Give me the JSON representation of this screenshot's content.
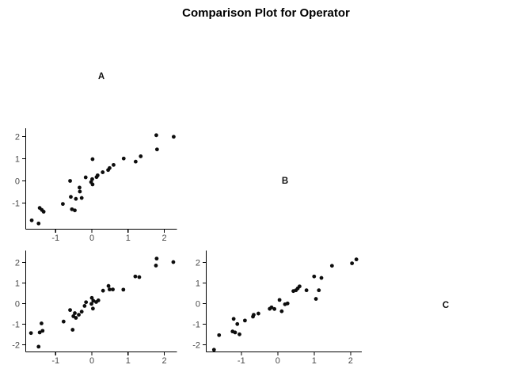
{
  "chart_data": {
    "type": "scatter",
    "title": "Comparison Plot for Operator",
    "variables": [
      "A",
      "B",
      "C"
    ],
    "grid": false,
    "legend": false,
    "point_color": "#0d0d0d",
    "axis_color": "#000000",
    "tick_label_color": "#4a4a4a",
    "background_color": "#ffffff",
    "description": "Lower-triangle pairwise scatter matrix of measurements by operators A, B and C; diagonal cells show the operator label.",
    "panels": [
      {
        "x_var": "A",
        "y_var": "B",
        "x_ticks": [
          -1,
          0,
          1,
          2
        ],
        "y_ticks": [
          2,
          1,
          0,
          -1
        ],
        "x_range": [
          -1.85,
          2.35
        ],
        "y_range": [
          -2.2,
          2.35
        ],
        "points": [
          [
            -1.66,
            -1.78
          ],
          [
            -1.47,
            -1.92
          ],
          [
            -1.44,
            -1.22
          ],
          [
            -1.38,
            -1.31
          ],
          [
            -1.33,
            -1.39
          ],
          [
            -0.8,
            -1.04
          ],
          [
            -0.6,
            0.0
          ],
          [
            -0.58,
            -0.72
          ],
          [
            -0.55,
            -1.28
          ],
          [
            -0.47,
            -1.33
          ],
          [
            -0.44,
            -0.81
          ],
          [
            -0.34,
            -0.3
          ],
          [
            -0.33,
            -0.48
          ],
          [
            -0.28,
            -0.77
          ],
          [
            -0.17,
            0.16
          ],
          [
            0.02,
            0.98
          ],
          [
            0.01,
            0.08
          ],
          [
            -0.02,
            -0.05
          ],
          [
            0.02,
            -0.16
          ],
          [
            0.13,
            0.17
          ],
          [
            0.16,
            0.25
          ],
          [
            0.3,
            0.39
          ],
          [
            0.45,
            0.49
          ],
          [
            0.49,
            0.58
          ],
          [
            0.6,
            0.72
          ],
          [
            0.88,
            1.01
          ],
          [
            1.21,
            0.87
          ],
          [
            1.35,
            1.11
          ],
          [
            1.78,
            2.06
          ],
          [
            1.8,
            1.42
          ],
          [
            2.26,
            1.99
          ]
        ]
      },
      {
        "x_var": "A",
        "y_var": "C",
        "x_ticks": [
          -1,
          0,
          1,
          2
        ],
        "y_ticks": [
          2,
          1,
          0,
          -1,
          -2
        ],
        "x_range": [
          -1.85,
          2.35
        ],
        "y_range": [
          -2.45,
          2.45
        ],
        "points": [
          [
            -1.68,
            -1.44
          ],
          [
            -1.47,
            -2.1
          ],
          [
            -1.44,
            -1.41
          ],
          [
            -1.39,
            -0.97
          ],
          [
            -1.36,
            -1.33
          ],
          [
            -0.78,
            -0.88
          ],
          [
            -0.6,
            -0.32
          ],
          [
            -0.53,
            -1.28
          ],
          [
            -0.51,
            -0.62
          ],
          [
            -0.47,
            -0.47
          ],
          [
            -0.44,
            -0.7
          ],
          [
            -0.36,
            -0.55
          ],
          [
            -0.28,
            -0.4
          ],
          [
            -0.2,
            -0.12
          ],
          [
            -0.16,
            0.06
          ],
          [
            0.0,
            0.27
          ],
          [
            0.04,
            0.13
          ],
          [
            -0.01,
            -0.02
          ],
          [
            0.03,
            -0.25
          ],
          [
            0.12,
            0.07
          ],
          [
            0.18,
            0.15
          ],
          [
            0.31,
            0.62
          ],
          [
            0.46,
            0.85
          ],
          [
            0.49,
            0.68
          ],
          [
            0.58,
            0.68
          ],
          [
            0.87,
            0.67
          ],
          [
            1.2,
            1.31
          ],
          [
            1.31,
            1.28
          ],
          [
            1.77,
            1.84
          ],
          [
            1.79,
            2.18
          ],
          [
            2.25,
            2.01
          ]
        ]
      },
      {
        "x_var": "B",
        "y_var": "C",
        "x_ticks": [
          -1,
          0,
          1,
          2
        ],
        "y_ticks": [
          2,
          1,
          0,
          -1,
          -2
        ],
        "x_range": [
          -1.95,
          2.3
        ],
        "y_range": [
          -2.45,
          2.45
        ],
        "points": [
          [
            -1.75,
            -2.25
          ],
          [
            -1.61,
            -1.54
          ],
          [
            -1.24,
            -1.36
          ],
          [
            -1.21,
            -0.75
          ],
          [
            -1.17,
            -1.41
          ],
          [
            -1.11,
            -1.0
          ],
          [
            -1.05,
            -1.5
          ],
          [
            -0.9,
            -0.83
          ],
          [
            -0.68,
            -0.64
          ],
          [
            -0.66,
            -0.55
          ],
          [
            -0.53,
            -0.49
          ],
          [
            -0.22,
            -0.26
          ],
          [
            -0.17,
            -0.19
          ],
          [
            -0.09,
            -0.27
          ],
          [
            0.05,
            0.17
          ],
          [
            0.11,
            -0.38
          ],
          [
            0.2,
            -0.04
          ],
          [
            0.27,
            0.0
          ],
          [
            0.43,
            0.6
          ],
          [
            0.5,
            0.64
          ],
          [
            0.55,
            0.73
          ],
          [
            0.6,
            0.83
          ],
          [
            0.79,
            0.64
          ],
          [
            1.0,
            1.31
          ],
          [
            1.05,
            0.22
          ],
          [
            1.13,
            0.64
          ],
          [
            1.2,
            1.24
          ],
          [
            1.49,
            1.83
          ],
          [
            2.04,
            1.95
          ],
          [
            2.16,
            2.14
          ]
        ]
      }
    ]
  }
}
